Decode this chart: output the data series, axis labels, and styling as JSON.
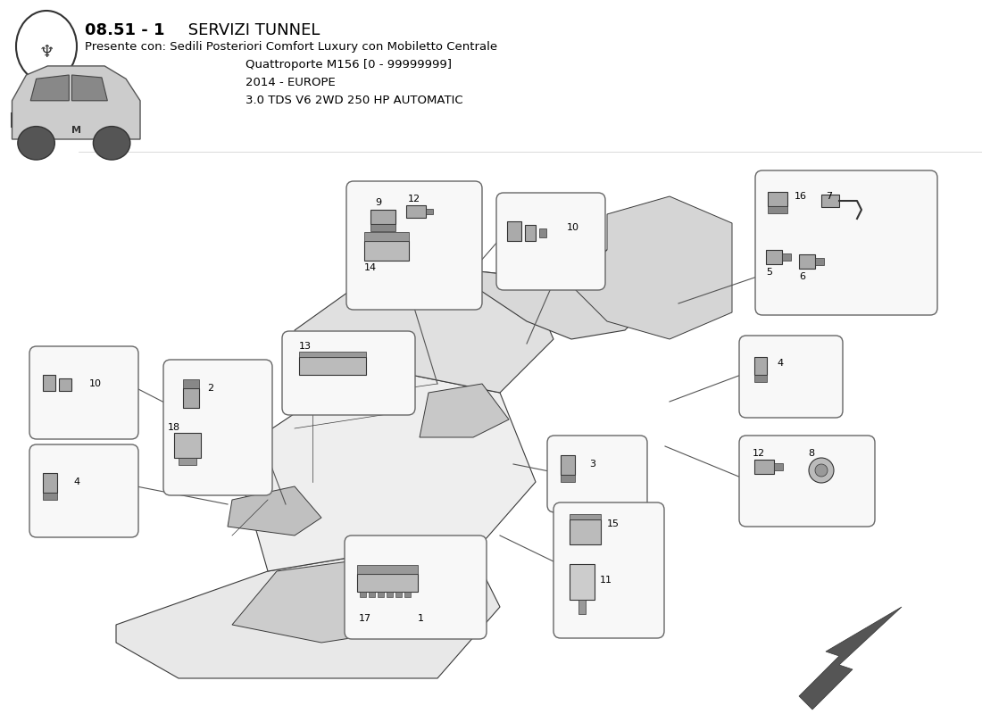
{
  "title_bold": "08.51 - 1",
  "title_normal": " SERVIZI TUNNEL",
  "subtitle_line1": "Presente con: Sedili Posteriori Comfort Luxury con Mobiletto Centrale",
  "subtitle_line2": "Quattroporte M156 [0 - 99999999]",
  "subtitle_line3": "2014 - EUROPE",
  "subtitle_line4": "3.0 TDS V6 2WD 250 HP AUTOMATIC",
  "bg_color": "#ffffff",
  "line_color": "#3a3a3a",
  "box_fill": "#f8f8f8",
  "box_edge": "#555555"
}
